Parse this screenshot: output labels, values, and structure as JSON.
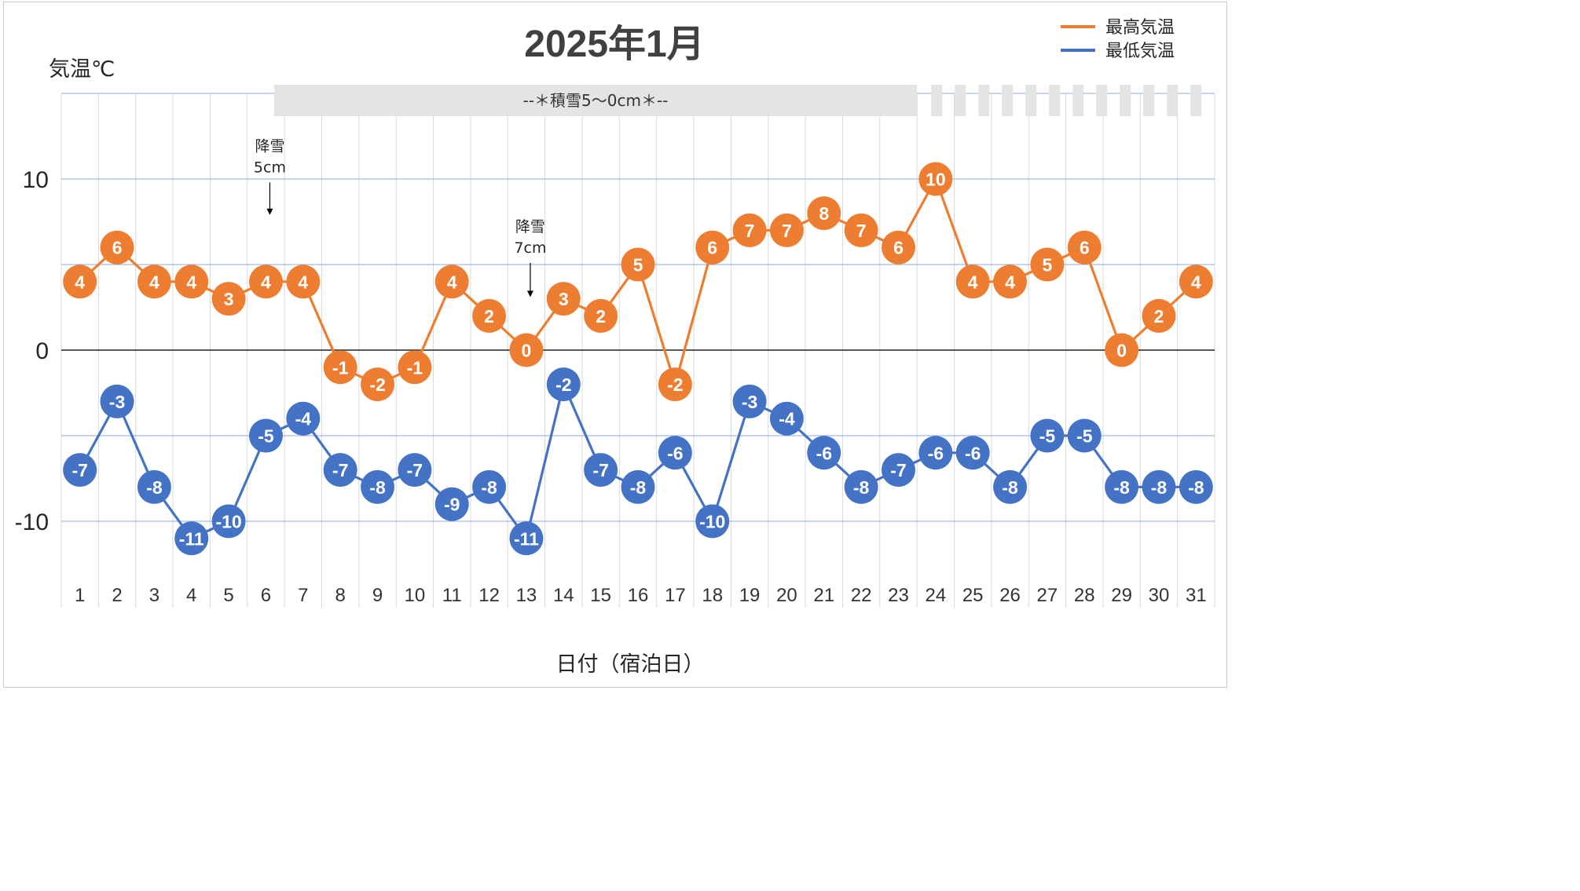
{
  "chart_data": {
    "type": "line",
    "title": "2025年1月",
    "ylabel": "気温℃",
    "xlabel": "日付（宿泊日）",
    "ylim": [
      -14,
      15
    ],
    "yticks": [
      10,
      0,
      -10
    ],
    "grid": true,
    "legend_position": "top-right",
    "categories": [
      "1",
      "2",
      "3",
      "4",
      "5",
      "6",
      "7",
      "8",
      "9",
      "10",
      "11",
      "12",
      "13",
      "14",
      "15",
      "16",
      "17",
      "18",
      "19",
      "20",
      "21",
      "22",
      "23",
      "24",
      "25",
      "26",
      "27",
      "28",
      "29",
      "30",
      "31"
    ],
    "series": [
      {
        "name": "最高気温",
        "color": "#ED7D31",
        "values": [
          4,
          6,
          4,
          4,
          3,
          4,
          4,
          -1,
          -2,
          -1,
          4,
          2,
          0,
          3,
          2,
          5,
          -2,
          6,
          7,
          7,
          8,
          7,
          6,
          10,
          4,
          4,
          5,
          6,
          0,
          2,
          4
        ]
      },
      {
        "name": "最低気温",
        "color": "#4472C4",
        "values": [
          -7,
          -3,
          -8,
          -11,
          -10,
          -5,
          -4,
          -7,
          -8,
          -7,
          -9,
          -8,
          -11,
          -2,
          -7,
          -8,
          -6,
          -10,
          -3,
          -4,
          -6,
          -8,
          -7,
          -6,
          -6,
          -8,
          -5,
          -5,
          -8,
          -8,
          -8
        ]
      }
    ],
    "annotations": [
      {
        "day": 6,
        "lines": [
          "降雪",
          "5cm"
        ],
        "arrow_from": 9.8,
        "arrow_to": 7.9
      },
      {
        "day": 13,
        "lines": [
          "降雪",
          "7cm"
        ],
        "arrow_from": 5.1,
        "arrow_to": 3.1
      }
    ],
    "snow_band": {
      "label": "--＊積雪5～0cm＊--",
      "solid_from_day": 6,
      "solid_to_day": 23,
      "dashed_to_day": 31,
      "color": "#E4E4E4"
    }
  }
}
